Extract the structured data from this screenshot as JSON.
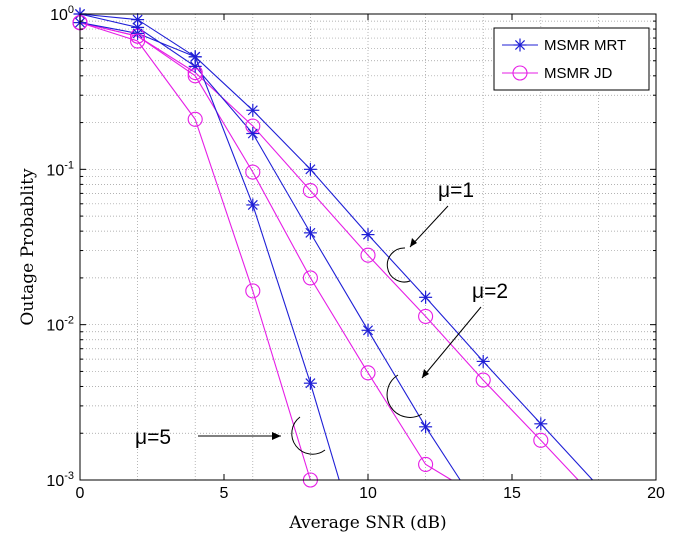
{
  "chart_data": {
    "type": "line",
    "title": "",
    "xlabel": "Average SNR (dB)",
    "ylabel": "Outage Probablity",
    "xlim": [
      0,
      20
    ],
    "ylim": [
      0.001,
      1
    ],
    "yscale": "log",
    "grid": true,
    "x_ticks": [
      0,
      5,
      10,
      15,
      20
    ],
    "x_tick_labels": [
      "0",
      "5",
      "10",
      "15",
      "20"
    ],
    "y_tick_labels": [
      {
        "value": 1,
        "base": "10",
        "exp": "0"
      },
      {
        "value": 0.1,
        "base": "10",
        "exp": "-1"
      },
      {
        "value": 0.01,
        "base": "10",
        "exp": "-2"
      },
      {
        "value": 0.001,
        "base": "10",
        "exp": "-3"
      }
    ],
    "legend": {
      "placement": "top-right",
      "entries": [
        {
          "label": "MSMR MRT",
          "color": "#1f1fd6",
          "marker": "asterisk"
        },
        {
          "label": "MSMR JD",
          "color": "#e61ee6",
          "marker": "circle"
        }
      ]
    },
    "series": [
      {
        "group": "MSMR MRT",
        "mu": "1",
        "color": "#1f1fd6",
        "marker": "asterisk",
        "x": [
          0,
          2,
          4,
          6,
          8,
          10,
          12,
          14,
          16,
          17.8
        ],
        "y": [
          1.0,
          0.92,
          0.53,
          0.24,
          0.1,
          0.038,
          0.015,
          0.0058,
          0.0023,
          0.001
        ]
      },
      {
        "group": "MSMR JD",
        "mu": "1",
        "color": "#e61ee6",
        "marker": "circle",
        "x": [
          0,
          2,
          4,
          6,
          8,
          10,
          12,
          14,
          16,
          17.3
        ],
        "y": [
          0.88,
          0.72,
          0.42,
          0.19,
          0.073,
          0.028,
          0.0113,
          0.0044,
          0.0018,
          0.001
        ]
      },
      {
        "group": "MSMR MRT",
        "mu": "2",
        "color": "#1f1fd6",
        "marker": "asterisk",
        "x": [
          0,
          2,
          4,
          6,
          8,
          10,
          12,
          13.2
        ],
        "y": [
          1.0,
          0.82,
          0.46,
          0.17,
          0.039,
          0.0092,
          0.0022,
          0.001
        ]
      },
      {
        "group": "MSMR JD",
        "mu": "2",
        "color": "#e61ee6",
        "marker": "circle",
        "x": [
          0,
          2,
          4,
          6,
          8,
          10,
          12,
          12.9
        ],
        "y": [
          0.88,
          0.72,
          0.4,
          0.096,
          0.02,
          0.0049,
          0.00126,
          0.001
        ]
      },
      {
        "group": "MSMR MRT",
        "mu": "5",
        "color": "#1f1fd6",
        "marker": "asterisk",
        "x": [
          0,
          2,
          4,
          6,
          8,
          9.0
        ],
        "y": [
          0.88,
          0.75,
          0.53,
          0.059,
          0.0042,
          0.001
        ]
      },
      {
        "group": "MSMR JD",
        "mu": "5",
        "color": "#e61ee6",
        "marker": "circle",
        "x": [
          0,
          2,
          4,
          6,
          8,
          8.1
        ],
        "y": [
          0.88,
          0.67,
          0.21,
          0.0165,
          0.001,
          0.001
        ]
      }
    ],
    "annotations": [
      {
        "text": "μ=1",
        "x": 12.5,
        "y": 0.11
      },
      {
        "text": "μ=2",
        "x": 14.2,
        "y": 0.016
      },
      {
        "text": "μ=5",
        "x": 2.8,
        "y": 0.0019
      }
    ]
  }
}
